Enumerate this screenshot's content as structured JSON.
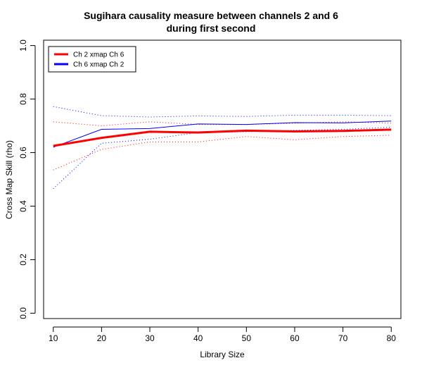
{
  "chart_data": {
    "type": "line",
    "title_lines": [
      "Sugihara causality measure between channels  2 and 6",
      "during first second"
    ],
    "xlabel": "Library Size",
    "ylabel": "Cross Map Skill (rho)",
    "xlim": [
      8,
      82
    ],
    "ylim": [
      -0.02,
      1.02
    ],
    "xticks": [
      10,
      20,
      30,
      40,
      50,
      60,
      70,
      80
    ],
    "yticks": [
      0.0,
      0.2,
      0.4,
      0.6,
      0.8,
      1.0
    ],
    "ytick_labels": [
      "0.0",
      "0.2",
      "0.4",
      "0.6",
      "0.8",
      "1.0"
    ],
    "x": [
      10,
      20,
      30,
      40,
      50,
      60,
      70,
      80
    ],
    "legend_position": "top-left",
    "grid": false,
    "series": [
      {
        "name": "Ch 2 xmap Ch 6",
        "color": "#ff0000",
        "mean": [
          0.625,
          0.655,
          0.678,
          0.675,
          0.682,
          0.679,
          0.681,
          0.686
        ],
        "upper": [
          0.715,
          0.7,
          0.715,
          0.705,
          0.705,
          0.71,
          0.715,
          0.71
        ],
        "lower": [
          0.535,
          0.612,
          0.64,
          0.64,
          0.66,
          0.648,
          0.66,
          0.665
        ]
      },
      {
        "name": "Ch 6  xmap Ch 2",
        "color": "#0000ff",
        "mean": [
          0.62,
          0.687,
          0.69,
          0.707,
          0.705,
          0.712,
          0.711,
          0.718
        ],
        "upper": [
          0.772,
          0.738,
          0.733,
          0.737,
          0.735,
          0.74,
          0.74,
          0.738
        ],
        "lower": [
          0.465,
          0.635,
          0.65,
          0.675,
          0.678,
          0.683,
          0.687,
          0.695
        ]
      }
    ]
  }
}
